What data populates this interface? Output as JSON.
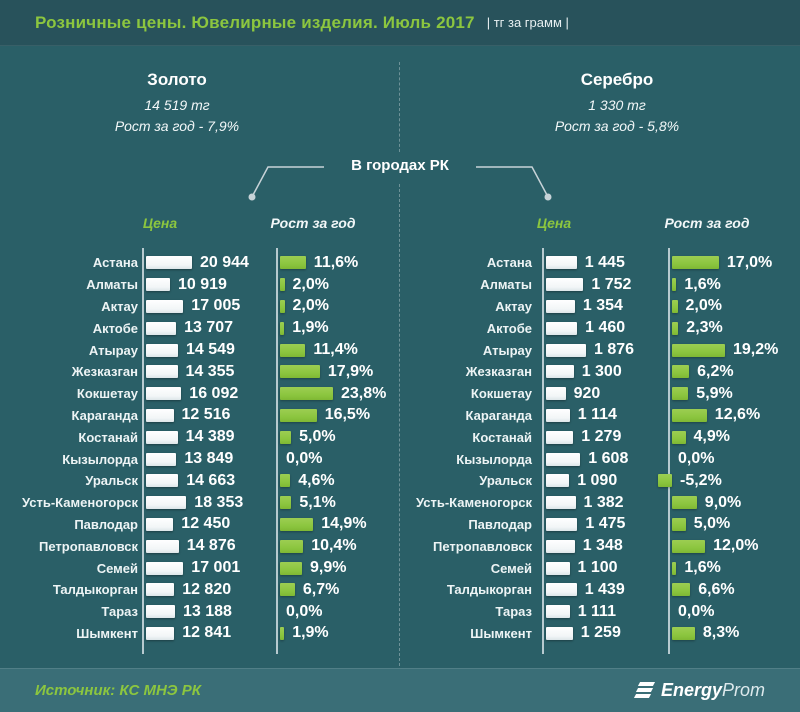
{
  "header": {
    "title": "Розничные цены. Ювелирные изделия. Июль 2017",
    "unit": "| тг за грамм |"
  },
  "summary": {
    "center_label": "В городах РК",
    "gold": {
      "title": "Золото",
      "price": "14 519 тг",
      "growth": "Рост за год - 7,9%"
    },
    "silver": {
      "title": "Серебро",
      "price": "1 330 тг",
      "growth": "Рост за год - 5,8%"
    }
  },
  "chart_data": [
    {
      "type": "bar",
      "title": "Золото — цена (тг за грамм) и рост за год по городам РК",
      "legend_position": "top",
      "grid": false,
      "columns": {
        "price": "Цена",
        "growth": "Рост за год"
      },
      "categories": [
        "Астана",
        "Алматы",
        "Актау",
        "Актобе",
        "Атырау",
        "Жезказган",
        "Кокшетау",
        "Караганда",
        "Костанай",
        "Кызылорда",
        "Уральск",
        "Усть-Каменогорск",
        "Павлодар",
        "Петропавловск",
        "Семей",
        "Талдыкорган",
        "Тараз",
        "Шымкент"
      ],
      "series": [
        {
          "name": "Цена, тг",
          "values": [
            20944,
            10919,
            17005,
            13707,
            14549,
            14355,
            16092,
            12516,
            14389,
            13849,
            14663,
            18353,
            12450,
            14876,
            17001,
            12820,
            13188,
            12841
          ],
          "labels": [
            "20 944",
            "10 919",
            "17 005",
            "13 707",
            "14 549",
            "14 355",
            "16 092",
            "12 516",
            "14 389",
            "13 849",
            "14 663",
            "18 353",
            "12 450",
            "14 876",
            "17 001",
            "12 820",
            "13 188",
            "12 841"
          ]
        },
        {
          "name": "Рост за год, %",
          "values": [
            11.6,
            2.0,
            2.0,
            1.9,
            11.4,
            17.9,
            23.8,
            16.5,
            5.0,
            0.0,
            4.6,
            5.1,
            14.9,
            10.4,
            9.9,
            6.7,
            0.0,
            1.9
          ],
          "labels": [
            "11,6%",
            "2,0%",
            "2,0%",
            "1,9%",
            "11,4%",
            "17,9%",
            "23,8%",
            "16,5%",
            "5,0%",
            "0,0%",
            "4,6%",
            "5,1%",
            "14,9%",
            "10,4%",
            "9,9%",
            "6,7%",
            "0,0%",
            "1,9%"
          ]
        }
      ]
    },
    {
      "type": "bar",
      "title": "Серебро — цена (тг за грамм) и рост за год по городам РК",
      "legend_position": "top",
      "grid": false,
      "columns": {
        "price": "Цена",
        "growth": "Рост за год"
      },
      "categories": [
        "Астана",
        "Алматы",
        "Актау",
        "Актобе",
        "Атырау",
        "Жезказган",
        "Кокшетау",
        "Караганда",
        "Костанай",
        "Кызылорда",
        "Уральск",
        "Усть-Каменогорск",
        "Павлодар",
        "Петропавловск",
        "Семей",
        "Талдыкорган",
        "Тараз",
        "Шымкент"
      ],
      "series": [
        {
          "name": "Цена, тг",
          "values": [
            1445,
            1752,
            1354,
            1460,
            1876,
            1300,
            920,
            1114,
            1279,
            1608,
            1090,
            1382,
            1475,
            1348,
            1100,
            1439,
            1111,
            1259
          ],
          "labels": [
            "1 445",
            "1 752",
            "1 354",
            "1 460",
            "1 876",
            "1 300",
            "920",
            "1 114",
            "1 279",
            "1 608",
            "1 090",
            "1 382",
            "1 475",
            "1 348",
            "1 100",
            "1 439",
            "1 111",
            "1 259"
          ]
        },
        {
          "name": "Рост за год, %",
          "values": [
            17.0,
            1.6,
            2.0,
            2.3,
            19.2,
            6.2,
            5.9,
            12.6,
            4.9,
            0.0,
            -5.2,
            9.0,
            5.0,
            12.0,
            1.6,
            6.6,
            0.0,
            8.3
          ],
          "labels": [
            "17,0%",
            "1,6%",
            "2,0%",
            "2,3%",
            "19,2%",
            "6,2%",
            "5,9%",
            "12,6%",
            "4,9%",
            "0,0%",
            "-5,2%",
            "9,0%",
            "5,0%",
            "12,0%",
            "1,6%",
            "6,6%",
            "0,0%",
            "8,3%"
          ]
        }
      ]
    }
  ],
  "footer": {
    "source": "Источник: КС МНЭ РК",
    "logo": {
      "bold": "Energy",
      "light": "Prom"
    }
  },
  "colors": {
    "accent_green": "#8CC63F",
    "bar_white": "#FFFFFF",
    "background": "#2A5F67",
    "header_bg": "#28525B",
    "footer_bg": "#3A6E77"
  }
}
